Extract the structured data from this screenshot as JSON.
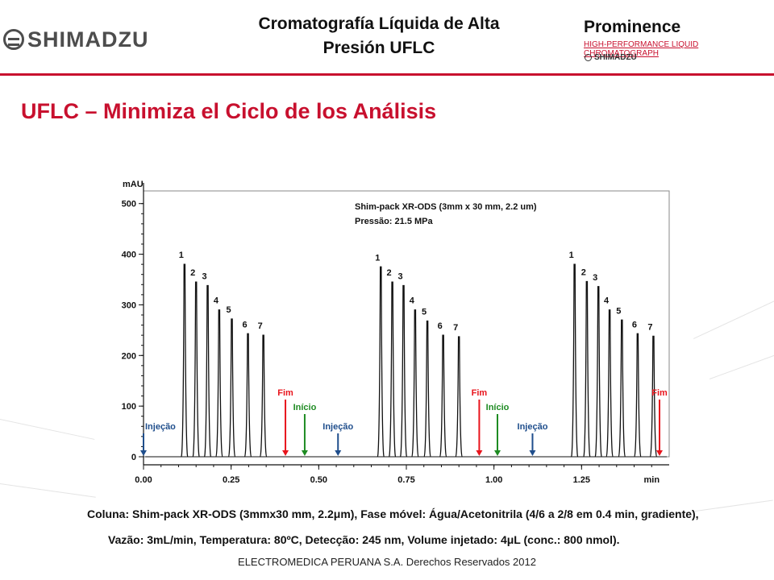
{
  "header": {
    "brand": "SHIMADZU",
    "title_line1": "Cromatografía Líquida de Alta",
    "title_line2": "Presión UFLC",
    "product_name": "Prominence",
    "product_subtitle": "HIGH-PERFORMANCE LIQUID CHROMATOGRAPH",
    "product_brand": "SHIMADZU"
  },
  "slide_title": "UFLC – Minimiza el Ciclo de los Análisis",
  "colors": {
    "accent": "#c8102e",
    "fim": "#e8141c",
    "inicio": "#1e8b22",
    "injecao": "#1f4e8c",
    "trace": "#111111"
  },
  "chart_data": {
    "type": "line",
    "ylabel": "mAU",
    "xlabel": "min",
    "xlim": [
      0.0,
      1.45
    ],
    "ylim": [
      0,
      500
    ],
    "xticks": [
      "0.00",
      "0.25",
      "0.50",
      "0.75",
      "1.00",
      "1.25"
    ],
    "yticks": [
      "0",
      "100",
      "200",
      "300",
      "400",
      "500"
    ],
    "box_text": [
      "Shim-pack XR-ODS (3mm x 30 mm, 2.2 um)",
      "Pressão: 21.5 MPa"
    ],
    "peaks": [
      {
        "label": "1",
        "x": 0.117,
        "y": 380
      },
      {
        "label": "2",
        "x": 0.15,
        "y": 345
      },
      {
        "label": "3",
        "x": 0.183,
        "y": 338
      },
      {
        "label": "4",
        "x": 0.216,
        "y": 290
      },
      {
        "label": "5",
        "x": 0.252,
        "y": 272
      },
      {
        "label": "6",
        "x": 0.298,
        "y": 243
      },
      {
        "label": "7",
        "x": 0.342,
        "y": 240
      },
      {
        "label": "1",
        "x": 0.677,
        "y": 375
      },
      {
        "label": "2",
        "x": 0.71,
        "y": 345
      },
      {
        "label": "3",
        "x": 0.742,
        "y": 338
      },
      {
        "label": "4",
        "x": 0.775,
        "y": 290
      },
      {
        "label": "5",
        "x": 0.81,
        "y": 268
      },
      {
        "label": "6",
        "x": 0.855,
        "y": 240
      },
      {
        "label": "7",
        "x": 0.9,
        "y": 237
      },
      {
        "label": "1",
        "x": 1.23,
        "y": 380
      },
      {
        "label": "2",
        "x": 1.265,
        "y": 346
      },
      {
        "label": "3",
        "x": 1.298,
        "y": 336
      },
      {
        "label": "4",
        "x": 1.33,
        "y": 290
      },
      {
        "label": "5",
        "x": 1.365,
        "y": 270
      },
      {
        "label": "6",
        "x": 1.41,
        "y": 243
      },
      {
        "label": "7",
        "x": 1.455,
        "y": 238
      }
    ],
    "markers": [
      {
        "label": "Injeção",
        "x": 0.0,
        "kind": "injecao"
      },
      {
        "label": "Fim",
        "x": 0.405,
        "kind": "fim"
      },
      {
        "label": "Início",
        "x": 0.46,
        "kind": "inicio"
      },
      {
        "label": "Injeção",
        "x": 0.555,
        "kind": "injecao"
      },
      {
        "label": "Fim",
        "x": 0.958,
        "kind": "fim"
      },
      {
        "label": "Início",
        "x": 1.01,
        "kind": "inicio"
      },
      {
        "label": "Injeção",
        "x": 1.11,
        "kind": "injecao"
      },
      {
        "label": "Fim",
        "x": 1.51,
        "kind": "fim"
      }
    ]
  },
  "caption": {
    "line1": "Coluna: Shim-pack XR-ODS (3mmx30 mm, 2.2μm), Fase móvel: Água/Acetonitrila (4/6 a 2/8 em 0.4 min, gradiente),",
    "line2": "Vazão: 3mL/min, Temperatura: 80ºC, Detecção: 245 nm, Volume injetado: 4μL (conc.: 800 nmol)."
  },
  "footer": "ELECTROMEDICA PERUANA S.A.   Derechos Reservados   2012"
}
